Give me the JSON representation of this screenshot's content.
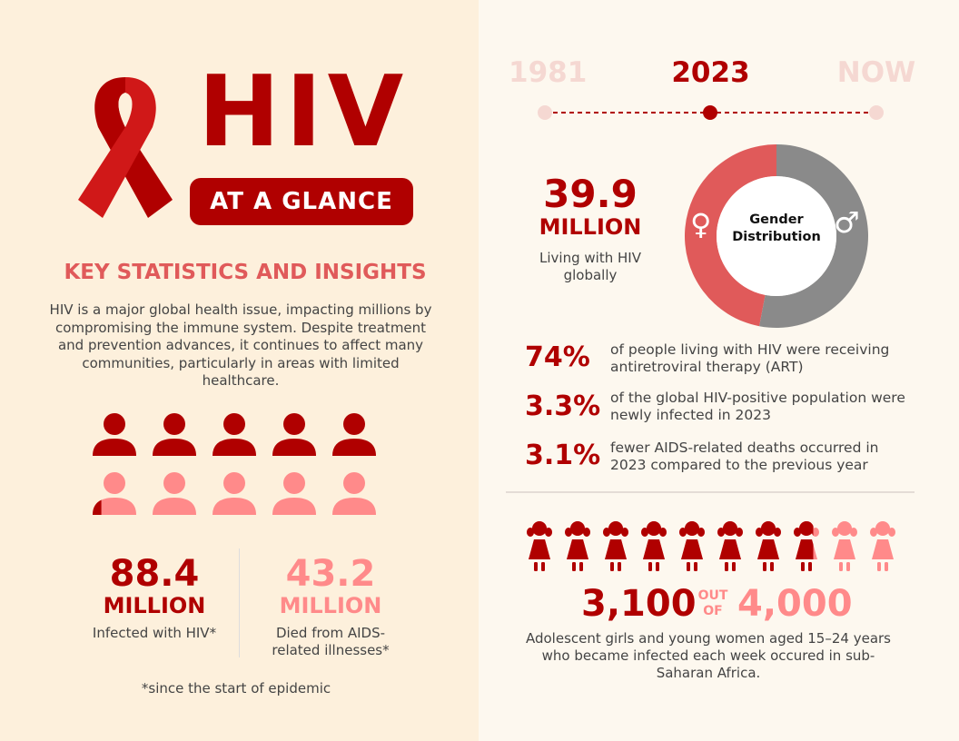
{
  "colors": {
    "dark_red": "#b00000",
    "pink": "#ff8a8a",
    "salmon": "#e05a5a",
    "gray": "#8a8a8a",
    "faded": "#f5d8d2"
  },
  "header": {
    "title": "HIV",
    "subtitle": "AT A GLANCE",
    "logo_icon": "awareness-ribbon-icon"
  },
  "left": {
    "heading": "KEY STATISTICS AND INSIGHTS",
    "intro": "HIV is a major global health issue, impacting millions by compromising the immune system. Despite treatment and prevention advances, it continues to affect many communities, particularly in areas with limited healthcare.",
    "people_icons": {
      "top_row_filled": [
        1,
        1,
        1,
        1,
        1
      ],
      "bottom_row_filled": [
        0.2,
        0,
        0,
        0,
        0
      ]
    },
    "infected": {
      "value": "88.4",
      "unit": "MILLION",
      "caption": "Infected with HIV*"
    },
    "died": {
      "value": "43.2",
      "unit": "MILLION",
      "caption": "Died from AIDS-related illnesses*"
    },
    "footnote": "*since the start of epidemic"
  },
  "timeline": {
    "items": [
      {
        "label": "1981",
        "active": false
      },
      {
        "label": "2023",
        "active": true
      },
      {
        "label": "NOW",
        "active": false
      }
    ]
  },
  "living": {
    "value": "39.9",
    "unit": "MILLION",
    "caption": "Living with HIV globally"
  },
  "chart_data": {
    "type": "pie",
    "title": "Gender Distribution",
    "series": [
      {
        "name": "female",
        "icon": "female-symbol-icon",
        "value": 47,
        "color": "#e05a5a"
      },
      {
        "name": "male",
        "icon": "male-symbol-icon",
        "value": 53,
        "color": "#8a8a8a"
      }
    ]
  },
  "stats": [
    {
      "value": "74%",
      "text": "of people living with HIV were receiving antiretroviral therapy (ART)"
    },
    {
      "value": "3.3%",
      "text": "of the global HIV-positive population were newly infected in 2023"
    },
    {
      "value": "3.1%",
      "text": "fewer AIDS-related deaths occurred in 2023 compared to the previous year"
    }
  ],
  "girls": {
    "count": "3,100",
    "out_of": "OUT OF",
    "total": "4,000",
    "fill_fraction": 0.775,
    "icons": 10,
    "caption": "Adolescent girls and young women aged 15–24 years who became infected each week occured in sub-Saharan Africa."
  }
}
